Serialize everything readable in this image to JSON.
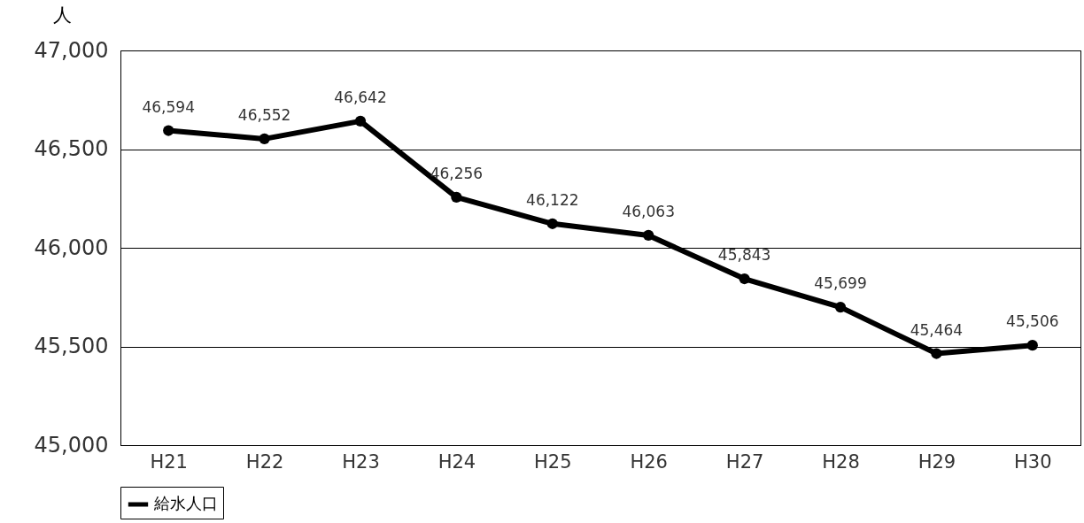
{
  "chart_data": {
    "type": "line",
    "ylabel": "人",
    "categories": [
      "H21",
      "H22",
      "H23",
      "H24",
      "H25",
      "H26",
      "H27",
      "H28",
      "H29",
      "H30"
    ],
    "series": [
      {
        "name": "給水人口",
        "color": "#000000",
        "values": [
          46594,
          46552,
          46642,
          46256,
          46122,
          46063,
          45843,
          45699,
          45464,
          45506
        ],
        "value_labels": [
          "46,594",
          "46,552",
          "46,642",
          "46,256",
          "46,122",
          "46,063",
          "45,843",
          "45,699",
          "45,464",
          "45,506"
        ]
      }
    ],
    "ylim": [
      45000,
      47000
    ],
    "yticks": [
      {
        "value": 45000,
        "label": "45,000"
      },
      {
        "value": 45500,
        "label": "45,500"
      },
      {
        "value": 46000,
        "label": "46,000"
      },
      {
        "value": 46500,
        "label": "46,500"
      },
      {
        "value": 47000,
        "label": "47,000"
      }
    ],
    "grid": "y",
    "legend": "bottom",
    "marker": "circle",
    "line_style": "solid"
  }
}
